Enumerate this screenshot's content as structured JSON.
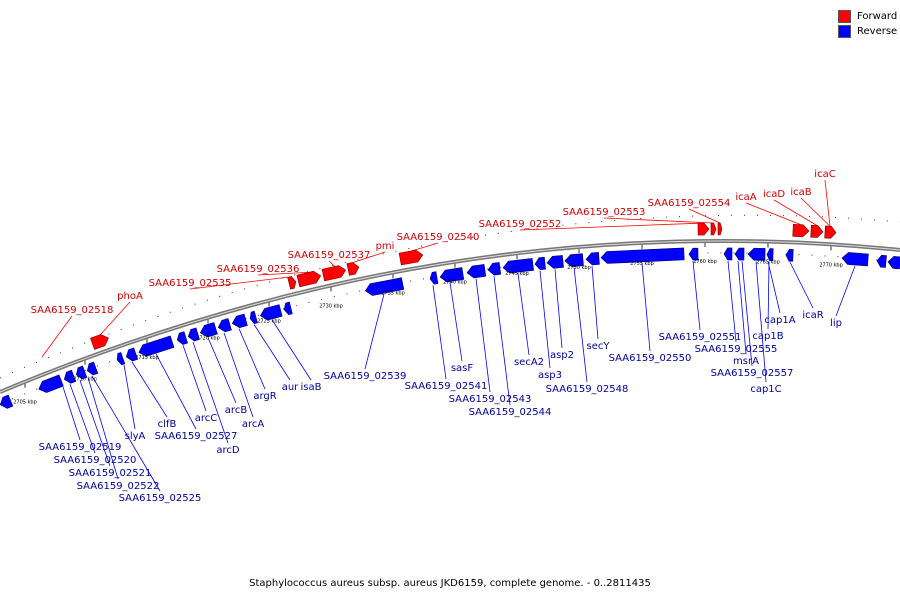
{
  "caption": "Staphylococcus aureus subsp. aureus JKD6159, complete genome. - 0..2811435",
  "legend": [
    {
      "label": "Forward",
      "color": "#ff0000"
    },
    {
      "label": "Reverse",
      "color": "#0000ff"
    }
  ],
  "colors": {
    "forward_label": "#cc0000",
    "reverse_label": "#000099",
    "backbone": "#777777"
  },
  "ticks": [
    "2705 kbp",
    "2710 kbp",
    "2715 kbp",
    "2720 kbp",
    "2725 kbp",
    "2730 kbp",
    "2735 kbp",
    "2740 kbp",
    "2745 kbp",
    "2750 kbp",
    "2755 kbp",
    "2760 kbp",
    "2765 kbp",
    "2770 kbp"
  ],
  "forward_genes": [
    "SAA6159_02518",
    "phoA",
    "SAA6159_02535",
    "SAA6159_02536",
    "SAA6159_02537",
    "pmi",
    "SAA6159_02540",
    "SAA6159_02552",
    "SAA6159_02553",
    "SAA6159_02554",
    "icaA",
    "icaD",
    "icaB",
    "icaC"
  ],
  "reverse_genes": [
    "SAA6159_02519",
    "SAA6159_02520",
    "SAA6159_02521",
    "SAA6159_02522",
    "SAA6159_02525",
    "slyA",
    "clfB",
    "SAA6159_02527",
    "arcC",
    "arcD",
    "arcB",
    "arcA",
    "argR",
    "aur",
    "isaB",
    "SAA6159_02539",
    "SAA6159_02541",
    "sasF",
    "SAA6159_02543",
    "SAA6159_02544",
    "secA2",
    "asp3",
    "asp2",
    "SAA6159_02548",
    "secY",
    "SAA6159_02550",
    "SAA6159_02551",
    "SAA6159_02555",
    "msrA",
    "SAA6159_02557",
    "cap1C",
    "cap1B",
    "cap1A",
    "icaR",
    "lip"
  ]
}
